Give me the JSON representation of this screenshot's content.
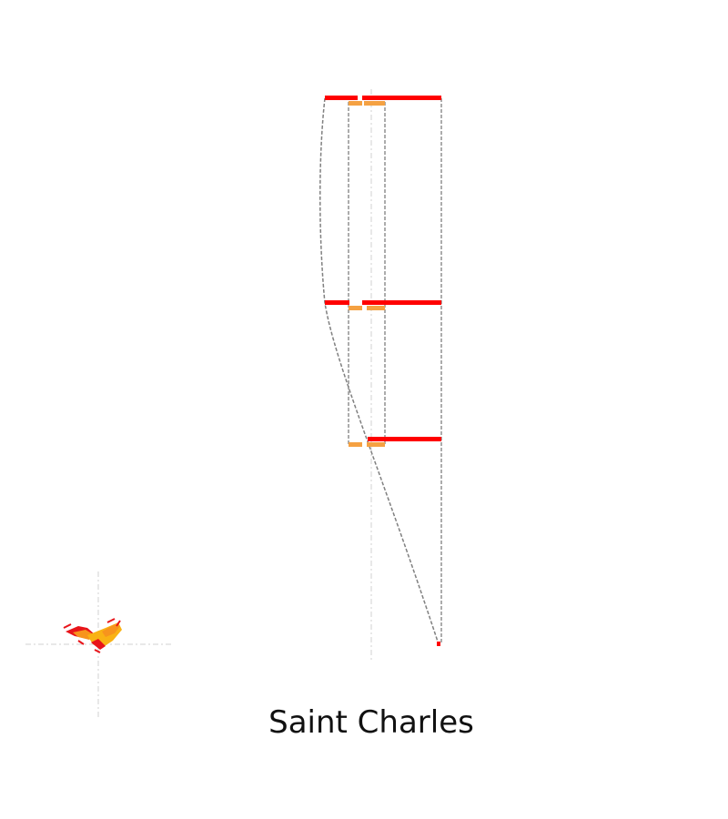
{
  "caption": "Saint Charles",
  "colors": {
    "primary_bar": "#ff0000",
    "secondary_bar": "#f5a142",
    "guide_line": "#808080",
    "axis_guide": "#d0d0d0",
    "mark_red": "#e8141a",
    "mark_orange": "#f7941d",
    "mark_yellow": "#f9b214"
  }
}
